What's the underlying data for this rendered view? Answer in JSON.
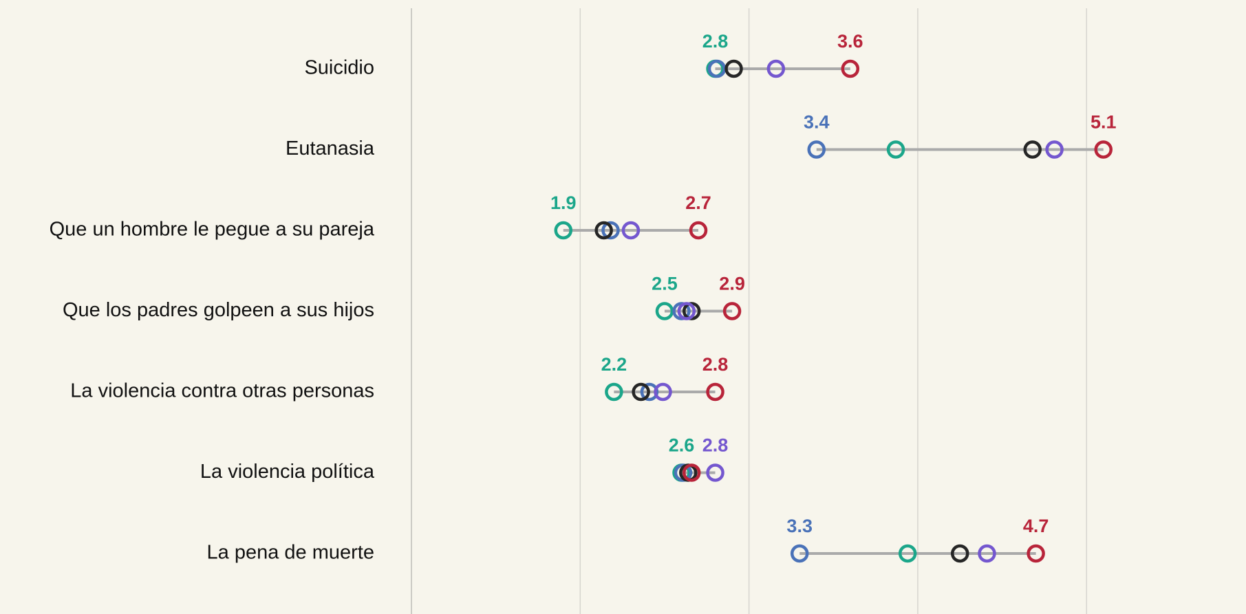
{
  "chart_data": {
    "type": "dot",
    "categories": [
      "Suicidio",
      "Eutanasia",
      "Que un hombre le pegue a su pareja",
      "Que los padres golpeen a sus hijos",
      "La violencia contra otras personas",
      "La violencia política",
      "La pena de muerte"
    ],
    "series": [
      {
        "color": "#1ba68a",
        "values": [
          2.8,
          3.87,
          1.9,
          2.5,
          2.2,
          2.6,
          3.94
        ]
      },
      {
        "color": "#4a72b8",
        "values": [
          2.81,
          3.4,
          2.18,
          2.6,
          2.41,
          2.61,
          3.3
        ]
      },
      {
        "color": "#262626",
        "values": [
          2.91,
          4.68,
          2.14,
          2.66,
          2.36,
          2.64,
          4.25
        ]
      },
      {
        "color": "#7457cf",
        "values": [
          3.16,
          4.81,
          2.3,
          2.63,
          2.49,
          2.8,
          4.41
        ]
      },
      {
        "color": "#b8243a",
        "values": [
          3.6,
          5.1,
          2.7,
          2.9,
          2.8,
          2.66,
          4.7
        ]
      }
    ],
    "xlim": [
      1,
      5.9
    ],
    "xticks": [
      1,
      2,
      3,
      4,
      5
    ],
    "grid": true
  }
}
